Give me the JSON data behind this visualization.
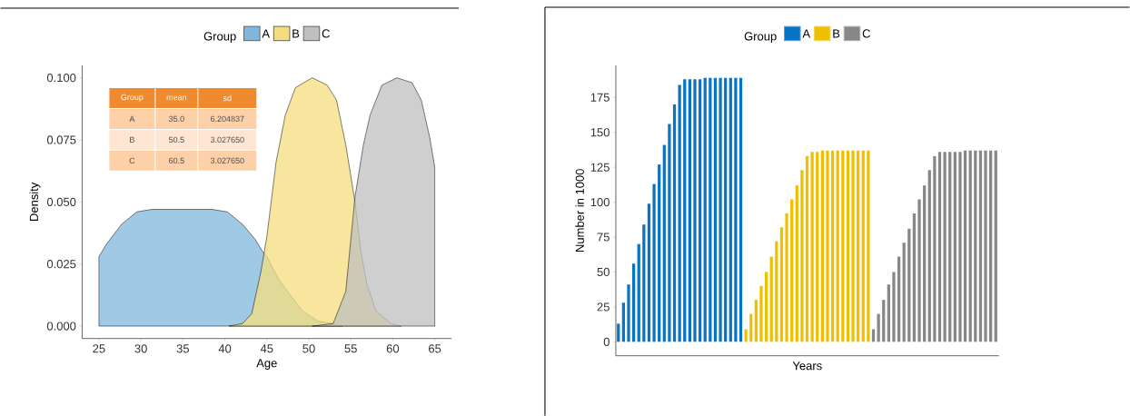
{
  "chart_data": [
    {
      "type": "area",
      "xlabel": "Age",
      "ylabel": "Density",
      "legend_title": "Group",
      "legend": "top",
      "xlim": [
        23,
        67
      ],
      "xticks": [
        25,
        30,
        35,
        40,
        45,
        50,
        55,
        60,
        65
      ],
      "ylim": [
        -0.005,
        0.105
      ],
      "yticks": [
        {
          "value": 0,
          "label": "0.000"
        },
        {
          "value": 0.025,
          "label": "0.025"
        },
        {
          "value": 0.05,
          "label": "0.050"
        },
        {
          "value": 0.075,
          "label": "0.075"
        },
        {
          "value": 0.1,
          "label": "0.100"
        }
      ],
      "annotations": [
        "Group",
        "mean",
        "sd",
        "A",
        "35.0",
        "6.204837",
        "B",
        "50.5",
        "3.027650",
        "C",
        "60.5",
        "3.027650"
      ],
      "series": [
        {
          "name": "A",
          "color": "#80b7de",
          "x": [
            25,
            25.9,
            27.7,
            29.5,
            31.3,
            35,
            38.5,
            40.3,
            42.1,
            43.6,
            44.5,
            45,
            46.4,
            47.9,
            49.3,
            51.1,
            52.9,
            54
          ],
          "values": [
            0.028,
            0.033,
            0.041,
            0.046,
            0.047,
            0.047,
            0.047,
            0.046,
            0.041,
            0.035,
            0.03,
            0.028,
            0.019,
            0.012,
            0.006,
            0.002,
            0.001,
            0
          ]
        },
        {
          "name": "B",
          "color": "#f5dd7e",
          "x": [
            40.5,
            42.1,
            43.2,
            44.3,
            45,
            46.1,
            47.2,
            48.4,
            50.4,
            52.2,
            53.3,
            54.4,
            55.5,
            56.2,
            56.9,
            58,
            59.8,
            61
          ],
          "values": [
            0,
            0.001,
            0.005,
            0.022,
            0.036,
            0.066,
            0.085,
            0.096,
            0.1,
            0.097,
            0.091,
            0.073,
            0.05,
            0.03,
            0.017,
            0.006,
            0.001,
            0
          ]
        },
        {
          "name": "C",
          "color": "#bfbfbf",
          "x": [
            50.4,
            52.9,
            54.4,
            55.5,
            56.5,
            57.3,
            58.7,
            60.5,
            62.3,
            63.4,
            64.4,
            65
          ],
          "values": [
            0,
            0.001,
            0.014,
            0.052,
            0.073,
            0.085,
            0.097,
            0.1,
            0.098,
            0.091,
            0.076,
            0.064
          ]
        }
      ]
    },
    {
      "type": "bar",
      "xlabel": "Years",
      "ylabel": "Number in 1000",
      "legend_title": "Group",
      "legend": "top",
      "tick_labels": "y",
      "ylim": [
        -10,
        198
      ],
      "yticks": [
        0,
        25,
        50,
        75,
        100,
        125,
        150,
        175
      ],
      "categories": [
        null,
        null,
        null,
        null,
        null,
        null,
        null,
        null,
        null,
        null,
        null,
        null,
        null,
        null,
        null,
        null,
        null,
        null,
        null,
        null,
        null,
        null,
        null,
        null,
        null,
        null,
        null,
        null,
        null,
        null,
        null,
        null,
        null,
        null,
        null,
        null,
        null,
        null,
        null,
        null,
        null,
        null,
        null,
        null,
        null,
        null,
        null,
        null,
        null,
        null,
        null,
        null,
        null,
        null,
        null,
        null,
        null,
        null,
        null,
        null,
        null,
        null,
        null,
        null,
        null,
        null,
        null,
        null,
        null,
        null,
        null,
        null,
        null,
        null,
        null
      ],
      "series": [
        {
          "name": "A",
          "color": "#0a74c4",
          "values": [
            13,
            28,
            41,
            56,
            70,
            84,
            99,
            113,
            127,
            141,
            156,
            170,
            184,
            188,
            188,
            188,
            188,
            189,
            189,
            189,
            189,
            189,
            189,
            189,
            189,
            null,
            null,
            null,
            null,
            null,
            null,
            null,
            null,
            null,
            null,
            null,
            null,
            null,
            null,
            null,
            null,
            null,
            null,
            null,
            null,
            null,
            null,
            null,
            null,
            null,
            null,
            null,
            null,
            null,
            null,
            null,
            null,
            null,
            null,
            null,
            null,
            null,
            null,
            null,
            null,
            null,
            null,
            null,
            null,
            null,
            null,
            null,
            null,
            null,
            null
          ]
        },
        {
          "name": "B",
          "color": "#f0c000",
          "values": [
            null,
            null,
            null,
            null,
            null,
            null,
            null,
            null,
            null,
            null,
            null,
            null,
            null,
            null,
            null,
            null,
            null,
            null,
            null,
            null,
            null,
            null,
            null,
            null,
            null,
            9,
            20,
            30,
            40,
            50,
            61,
            72,
            82,
            92,
            102,
            112,
            123,
            133,
            136,
            136,
            137,
            137,
            137,
            137,
            137,
            137,
            137,
            137,
            137,
            137,
            null,
            null,
            null,
            null,
            null,
            null,
            null,
            null,
            null,
            null,
            null,
            null,
            null,
            null,
            null,
            null,
            null,
            null,
            null,
            null,
            null,
            null,
            null,
            null,
            null
          ]
        },
        {
          "name": "C",
          "color": "#878787",
          "values": [
            null,
            null,
            null,
            null,
            null,
            null,
            null,
            null,
            null,
            null,
            null,
            null,
            null,
            null,
            null,
            null,
            null,
            null,
            null,
            null,
            null,
            null,
            null,
            null,
            null,
            null,
            null,
            null,
            null,
            null,
            null,
            null,
            null,
            null,
            null,
            null,
            null,
            null,
            null,
            null,
            null,
            null,
            null,
            null,
            null,
            null,
            null,
            null,
            null,
            null,
            9,
            20,
            30,
            41,
            50,
            61,
            71,
            81,
            92,
            102,
            112,
            123,
            133,
            136,
            136,
            136,
            136,
            136,
            137,
            137,
            137,
            137,
            137,
            137,
            137
          ]
        }
      ]
    }
  ]
}
